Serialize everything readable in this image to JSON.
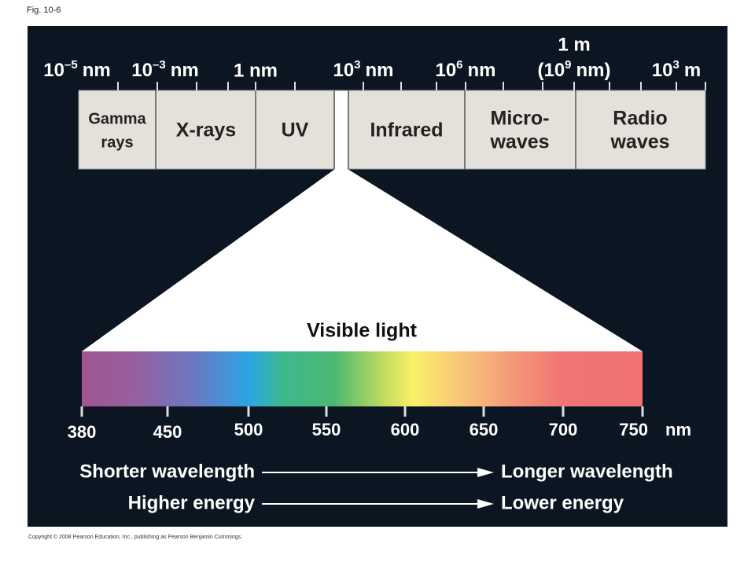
{
  "figure_label": "Fig. 10-6",
  "scale_labels": [
    {
      "base": "10",
      "exp": "–5",
      "unit": "nm"
    },
    {
      "base": "10",
      "exp": "–3",
      "unit": "nm"
    },
    {
      "text": "1 nm"
    },
    {
      "base": "10",
      "exp": "3",
      "unit": "nm"
    },
    {
      "base": "10",
      "exp": "6",
      "unit": "nm"
    },
    {
      "text": "1 m",
      "base": "(10",
      "exp": "9",
      "unit": "nm)"
    },
    {
      "base": "10",
      "exp": "3",
      "unit": "m"
    }
  ],
  "bands": [
    {
      "lines": [
        "Gamma",
        "rays"
      ]
    },
    {
      "lines": [
        "X-rays"
      ]
    },
    {
      "lines": [
        "UV"
      ]
    },
    {
      "lines": [
        "Infrared"
      ]
    },
    {
      "lines": [
        "Micro-",
        "waves"
      ]
    },
    {
      "lines": [
        "Radio",
        "waves"
      ]
    }
  ],
  "visible": {
    "title": "Visible light",
    "ticks": [
      380,
      450,
      500,
      550,
      600,
      650,
      700,
      750
    ],
    "unit": "nm"
  },
  "arrows": [
    {
      "from": "Shorter wavelength",
      "to": "Longer wavelength"
    },
    {
      "from": "Higher energy",
      "to": "Lower energy"
    }
  ],
  "copyright": "Copyright © 2008 Pearson Education, Inc., publishing as Pearson Benjamin Cummings."
}
